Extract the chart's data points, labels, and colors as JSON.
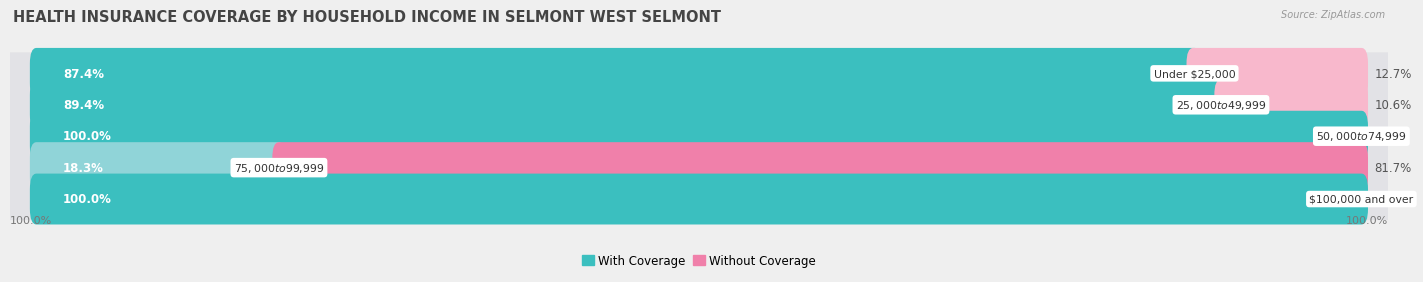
{
  "title": "HEALTH INSURANCE COVERAGE BY HOUSEHOLD INCOME IN SELMONT WEST SELMONT",
  "source": "Source: ZipAtlas.com",
  "categories": [
    "Under $25,000",
    "$25,000 to $49,999",
    "$50,000 to $74,999",
    "$75,000 to $99,999",
    "$100,000 and over"
  ],
  "with_coverage": [
    87.4,
    89.4,
    100.0,
    18.3,
    100.0
  ],
  "without_coverage": [
    12.7,
    10.6,
    0.0,
    81.7,
    0.0
  ],
  "color_with": "#3bbfbf",
  "color_without": "#f080aa",
  "color_with_light": "#90d4d8",
  "color_without_light": "#f8b8cc",
  "bg_color": "#efefef",
  "row_bg": "#e2e2e6",
  "title_fontsize": 10.5,
  "pct_fontsize": 8.5,
  "cat_fontsize": 7.8,
  "tick_fontsize": 8,
  "legend_fontsize": 8.5,
  "bar_height": 0.62
}
